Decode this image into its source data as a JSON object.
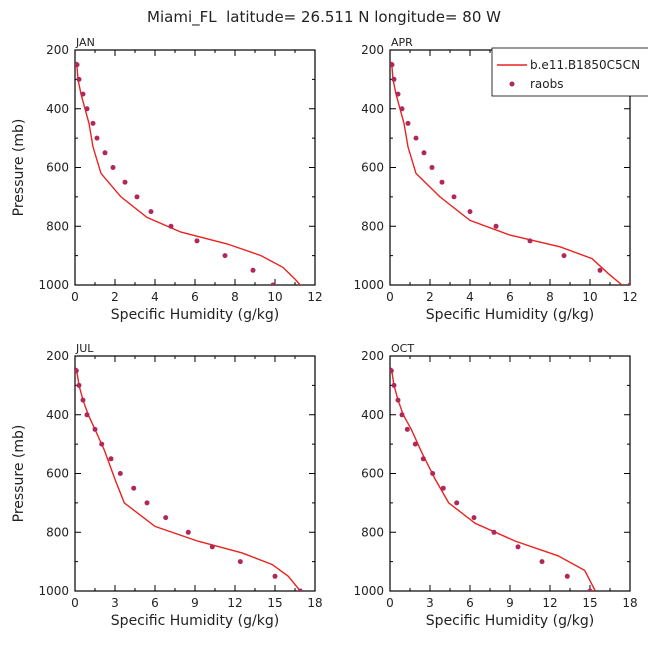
{
  "figure_title": "Miami_FL  latitude= 26.511 N longitude= 80 W",
  "colors": {
    "model_line": "#e8231f",
    "raobs_dots": "#b0285a",
    "axes": "#000000"
  },
  "legend": {
    "model_label": "b.e11.B1850C5CN",
    "obs_label": "raobs",
    "placement": "top-right of APR panel"
  },
  "chart_data": [
    {
      "type": "line",
      "panel_label": "JAN",
      "xlabel": "Specific Humidity (g/kg)",
      "ylabel": "Pressure (mb)",
      "xlim": [
        0,
        12
      ],
      "xticks": [
        0,
        2,
        4,
        6,
        8,
        10,
        12
      ],
      "ylim": [
        1000,
        200
      ],
      "yticks": [
        200,
        400,
        600,
        800,
        1000
      ],
      "series": [
        {
          "name": "b.e11.B1850C5CN",
          "style": "line",
          "x": [
            0.08,
            0.15,
            0.3,
            0.5,
            0.7,
            0.9,
            1.3,
            2.3,
            3.6,
            5.3,
            7.6,
            9.3,
            10.4,
            11.0,
            11.4
          ],
          "y": [
            240,
            300,
            350,
            400,
            450,
            530,
            620,
            700,
            770,
            820,
            860,
            900,
            940,
            980,
            1010
          ]
        },
        {
          "name": "raobs",
          "style": "markers",
          "x": [
            0.1,
            0.2,
            0.4,
            0.6,
            0.9,
            1.1,
            1.5,
            1.9,
            2.5,
            3.1,
            3.8,
            4.8,
            6.1,
            7.5,
            8.9,
            9.9
          ],
          "y": [
            250,
            300,
            350,
            400,
            450,
            500,
            550,
            600,
            650,
            700,
            750,
            800,
            850,
            900,
            950,
            1000
          ]
        }
      ]
    },
    {
      "type": "line",
      "panel_label": "APR",
      "xlabel": "Specific Humidity (g/kg)",
      "ylabel": "",
      "xlim": [
        0,
        12
      ],
      "xticks": [
        0,
        2,
        4,
        6,
        8,
        10,
        12
      ],
      "ylim": [
        1000,
        200
      ],
      "yticks": [
        200,
        400,
        600,
        800,
        1000
      ],
      "series": [
        {
          "name": "b.e11.B1850C5CN",
          "style": "line",
          "x": [
            0.08,
            0.15,
            0.3,
            0.5,
            0.7,
            0.9,
            1.3,
            2.5,
            4.0,
            6.0,
            8.5,
            10.1,
            10.9,
            11.6
          ],
          "y": [
            240,
            300,
            350,
            400,
            450,
            530,
            620,
            700,
            780,
            830,
            870,
            910,
            960,
            1000
          ]
        },
        {
          "name": "raobs",
          "style": "markers",
          "x": [
            0.1,
            0.2,
            0.4,
            0.6,
            0.9,
            1.3,
            1.7,
            2.1,
            2.6,
            3.2,
            4.0,
            5.3,
            7.0,
            8.7,
            10.5,
            12.0
          ],
          "y": [
            250,
            300,
            350,
            400,
            450,
            500,
            550,
            600,
            650,
            700,
            750,
            800,
            850,
            900,
            950,
            1000
          ]
        }
      ]
    },
    {
      "type": "line",
      "panel_label": "JUL",
      "xlabel": "Specific Humidity (g/kg)",
      "ylabel": "Pressure (mb)",
      "xlim": [
        0,
        18
      ],
      "xticks": [
        0,
        3,
        6,
        9,
        12,
        15,
        18
      ],
      "ylim": [
        1000,
        200
      ],
      "yticks": [
        200,
        400,
        600,
        800,
        1000
      ],
      "series": [
        {
          "name": "b.e11.B1850C5CN",
          "style": "line",
          "x": [
            0.1,
            0.3,
            0.6,
            1.0,
            1.5,
            2.2,
            3.0,
            3.7,
            6.0,
            9.2,
            12.5,
            14.8,
            16.0,
            16.9
          ],
          "y": [
            240,
            300,
            350,
            400,
            450,
            520,
            620,
            700,
            780,
            830,
            870,
            910,
            950,
            1000
          ]
        },
        {
          "name": "raobs",
          "style": "markers",
          "x": [
            0.1,
            0.3,
            0.6,
            0.9,
            1.5,
            2.0,
            2.7,
            3.4,
            4.4,
            5.4,
            6.8,
            8.5,
            10.3,
            12.4,
            15.0,
            16.9
          ],
          "y": [
            250,
            300,
            350,
            400,
            450,
            500,
            550,
            600,
            650,
            700,
            750,
            800,
            850,
            900,
            950,
            1000
          ]
        }
      ]
    },
    {
      "type": "line",
      "panel_label": "OCT",
      "xlabel": "Specific Humidity (g/kg)",
      "ylabel": "",
      "xlim": [
        0,
        18
      ],
      "xticks": [
        0,
        3,
        6,
        9,
        12,
        15,
        18
      ],
      "ylim": [
        1000,
        200
      ],
      "yticks": [
        200,
        400,
        600,
        800,
        1000
      ],
      "series": [
        {
          "name": "b.e11.B1850C5CN",
          "style": "line",
          "x": [
            0.1,
            0.3,
            0.6,
            1.0,
            1.6,
            2.4,
            3.4,
            4.4,
            6.4,
            9.4,
            12.6,
            14.6,
            15.4
          ],
          "y": [
            240,
            300,
            350,
            400,
            450,
            530,
            620,
            700,
            770,
            830,
            880,
            930,
            1000
          ]
        },
        {
          "name": "raobs",
          "style": "markers",
          "x": [
            0.1,
            0.3,
            0.6,
            0.9,
            1.3,
            1.9,
            2.5,
            3.2,
            4.0,
            5.0,
            6.3,
            7.8,
            9.6,
            11.4,
            13.3,
            15.0
          ],
          "y": [
            250,
            300,
            350,
            400,
            450,
            500,
            550,
            600,
            650,
            700,
            750,
            800,
            850,
            900,
            950,
            1000
          ]
        }
      ]
    }
  ]
}
